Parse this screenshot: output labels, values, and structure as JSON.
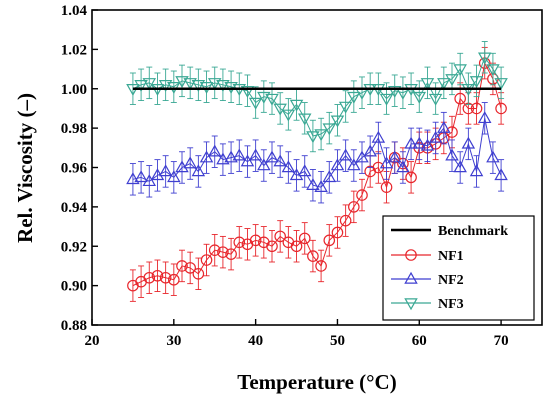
{
  "chart_data": {
    "type": "scatter",
    "xlabel": "Temperature (°C)",
    "ylabel": "Rel. Viscosity (–)",
    "xlim": [
      20,
      75
    ],
    "ylim": [
      0.88,
      1.04
    ],
    "xticks": [
      20,
      30,
      40,
      50,
      60,
      70
    ],
    "yticks": [
      0.88,
      0.9,
      0.92,
      0.94,
      0.96,
      0.98,
      1.0,
      1.02,
      1.04
    ],
    "legend_position": "lower-right",
    "grid": false,
    "benchmark": {
      "name": "Benchmark",
      "value": 1.0,
      "x": [
        25,
        70
      ],
      "color": "#000000"
    },
    "series": [
      {
        "name": "NF1",
        "marker": "circle",
        "color": "#e8262c",
        "error": 0.008,
        "x": [
          25,
          26,
          27,
          28,
          29,
          30,
          31,
          32,
          33,
          34,
          35,
          36,
          37,
          38,
          39,
          40,
          41,
          42,
          43,
          44,
          45,
          46,
          47,
          48,
          49,
          50,
          51,
          52,
          53,
          54,
          55,
          56,
          57,
          58,
          59,
          60,
          61,
          62,
          63,
          64,
          65,
          66,
          67,
          68,
          69,
          70
        ],
        "y": [
          0.9,
          0.902,
          0.904,
          0.905,
          0.904,
          0.903,
          0.91,
          0.909,
          0.906,
          0.913,
          0.918,
          0.917,
          0.916,
          0.922,
          0.921,
          0.923,
          0.922,
          0.92,
          0.925,
          0.922,
          0.92,
          0.924,
          0.915,
          0.91,
          0.923,
          0.927,
          0.933,
          0.94,
          0.946,
          0.958,
          0.96,
          0.95,
          0.965,
          0.962,
          0.955,
          0.97,
          0.97,
          0.972,
          0.975,
          0.978,
          0.995,
          0.99,
          0.99,
          1.013,
          1.005,
          0.99
        ]
      },
      {
        "name": "NF2",
        "marker": "triangle-up",
        "color": "#3f3fd0",
        "error": 0.008,
        "x": [
          25,
          26,
          27,
          28,
          29,
          30,
          31,
          32,
          33,
          34,
          35,
          36,
          37,
          38,
          39,
          40,
          41,
          42,
          43,
          44,
          45,
          46,
          47,
          48,
          49,
          50,
          51,
          52,
          53,
          54,
          55,
          56,
          57,
          58,
          59,
          60,
          61,
          62,
          63,
          64,
          65,
          66,
          67,
          68,
          69,
          70
        ],
        "y": [
          0.954,
          0.955,
          0.953,
          0.956,
          0.958,
          0.955,
          0.96,
          0.962,
          0.958,
          0.965,
          0.968,
          0.964,
          0.965,
          0.966,
          0.963,
          0.966,
          0.961,
          0.965,
          0.963,
          0.96,
          0.956,
          0.958,
          0.951,
          0.95,
          0.955,
          0.961,
          0.966,
          0.961,
          0.965,
          0.968,
          0.975,
          0.962,
          0.965,
          0.96,
          0.972,
          0.972,
          0.971,
          0.975,
          0.98,
          0.966,
          0.96,
          0.972,
          0.958,
          0.985,
          0.965,
          0.956
        ]
      },
      {
        "name": "NF3",
        "marker": "triangle-down",
        "color": "#3aa894",
        "error": 0.008,
        "x": [
          25,
          26,
          27,
          28,
          29,
          30,
          31,
          32,
          33,
          34,
          35,
          36,
          37,
          38,
          39,
          40,
          41,
          42,
          43,
          44,
          45,
          46,
          47,
          48,
          49,
          50,
          51,
          52,
          53,
          54,
          55,
          56,
          57,
          58,
          59,
          60,
          61,
          62,
          63,
          64,
          65,
          66,
          67,
          68,
          69,
          70
        ],
        "y": [
          1.0,
          1.002,
          1.003,
          1.0,
          1.002,
          1.001,
          1.004,
          1.003,
          1.002,
          1.001,
          1.003,
          1.002,
          1.001,
          1.0,
          0.999,
          0.993,
          0.996,
          0.995,
          0.99,
          0.987,
          0.992,
          0.985,
          0.976,
          0.977,
          0.98,
          0.984,
          0.991,
          0.996,
          0.998,
          1.0,
          1.0,
          0.995,
          0.999,
          0.998,
          1.0,
          0.996,
          1.003,
          0.995,
          1.003,
          1.005,
          1.01,
          1.0,
          1.004,
          1.016,
          1.01,
          1.003
        ]
      }
    ]
  }
}
